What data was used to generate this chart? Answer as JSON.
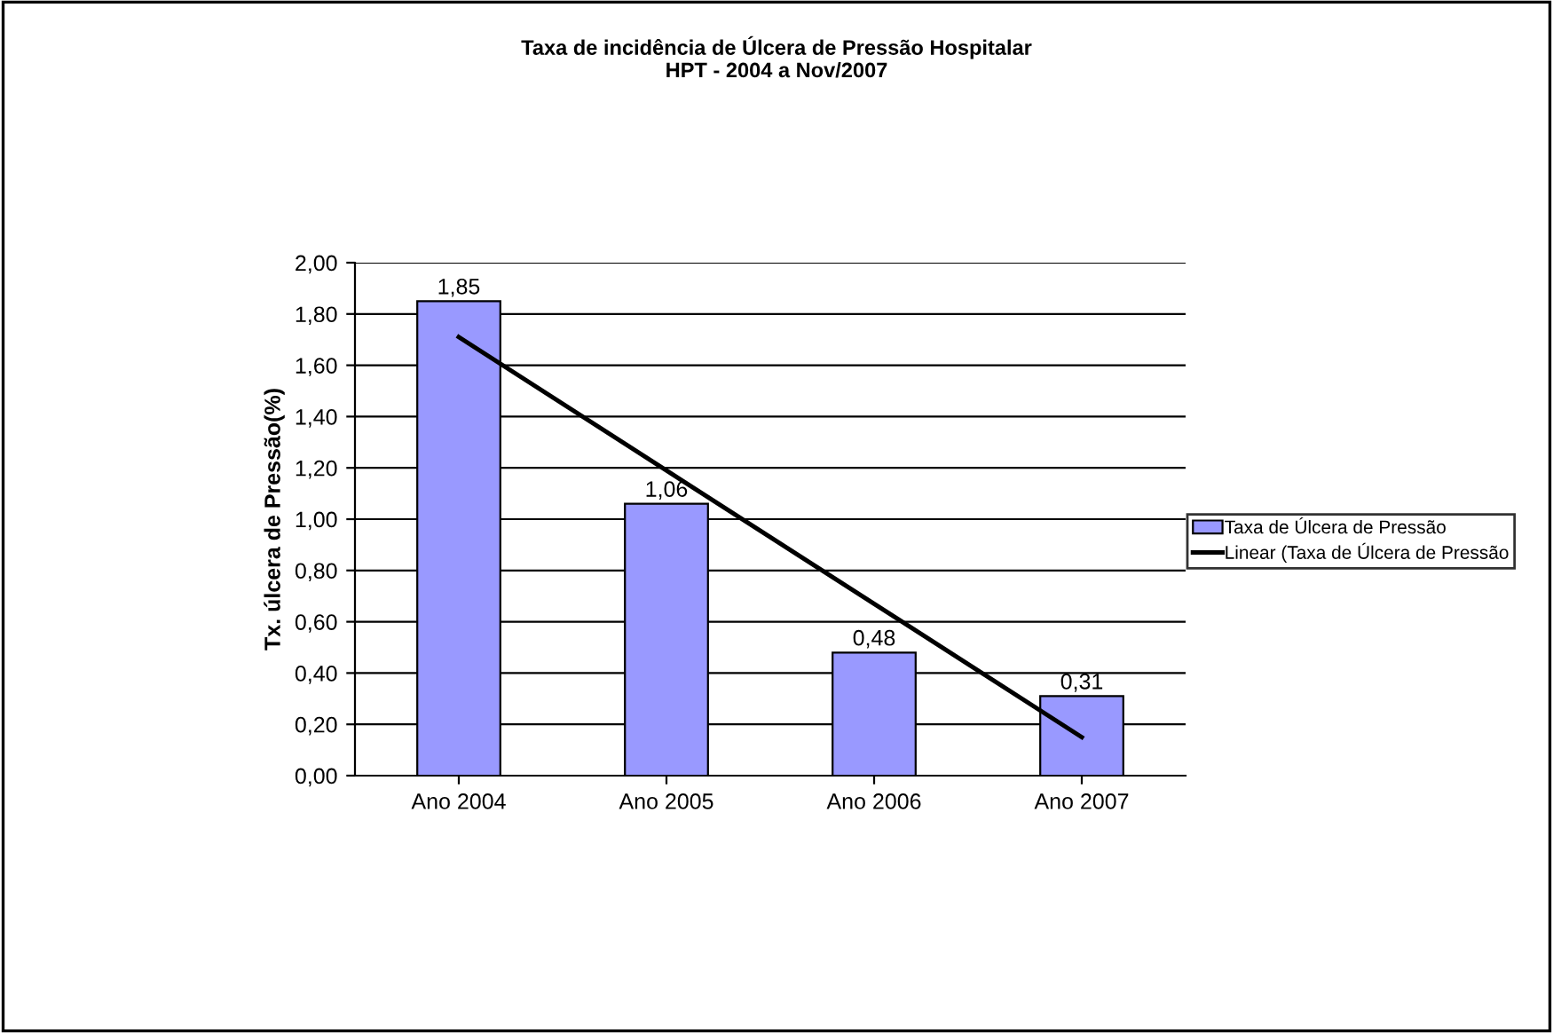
{
  "chart_data": {
    "type": "bar",
    "title": "Taxa de incidência de Úlcera de Pressão Hospitalar\nHPT - 2004 a Nov/2007",
    "ylabel": "Tx. úlcera de Pressão(%)",
    "categories": [
      "Ano 2004",
      "Ano 2005",
      "Ano 2006",
      "Ano 2007"
    ],
    "series": [
      {
        "name": "Taxa de Úlcera de Pressão",
        "color": "#9999ff",
        "values": [
          1.85,
          1.06,
          0.48,
          0.31
        ],
        "value_labels": [
          "1,85",
          "1,06",
          "0,48",
          "0,31"
        ]
      },
      {
        "name": "Linear (Taxa de Úlcera de Pressão",
        "type": "line",
        "color": "#000000",
        "values": [
          1.71,
          1.19,
          0.67,
          0.15
        ]
      }
    ],
    "ylim": [
      0,
      2
    ],
    "yticks": [
      {
        "value": 0,
        "label": "0,00"
      },
      {
        "value": 0.2,
        "label": "0,20"
      },
      {
        "value": 0.4,
        "label": "0,40"
      },
      {
        "value": 0.6,
        "label": "0,60"
      },
      {
        "value": 0.8,
        "label": "0,80"
      },
      {
        "value": 1.0,
        "label": "1,00"
      },
      {
        "value": 1.2,
        "label": "1,20"
      },
      {
        "value": 1.4,
        "label": "1,40"
      },
      {
        "value": 1.6,
        "label": "1,60"
      },
      {
        "value": 1.8,
        "label": "1,80"
      },
      {
        "value": 2.0,
        "label": "2,00"
      }
    ],
    "grid": "y",
    "legend": "right"
  }
}
